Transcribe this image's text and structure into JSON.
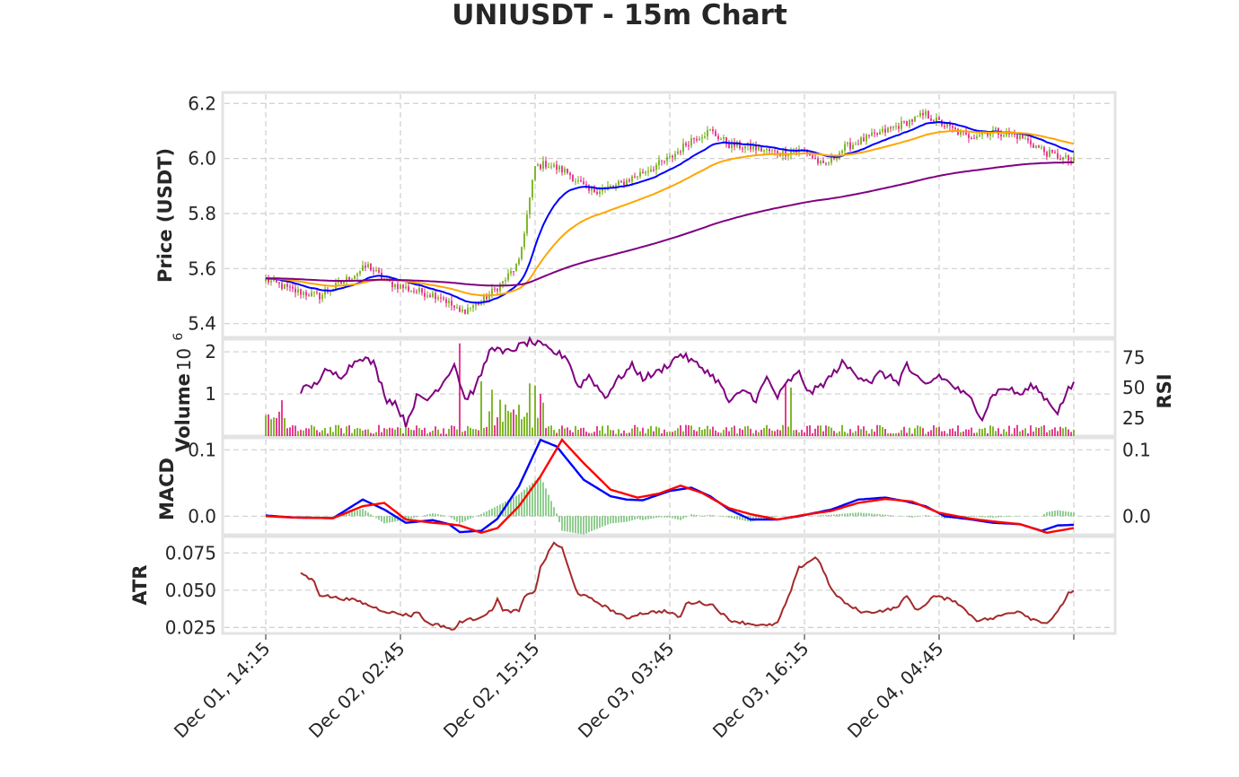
{
  "chart_data": [
    {
      "type": "candlestick",
      "panel": "price",
      "title": "UNIUSDT - 15m Chart",
      "ylabel": "Price (USDT)",
      "ylim": [
        5.35,
        6.24
      ],
      "yticks": [
        "5.4",
        "5.6",
        "5.8",
        "6.0",
        "6.2"
      ],
      "x_start": "Dec 01, 14:15",
      "x_interval_minutes": 15,
      "x_count": 361,
      "xtick_index": [
        0,
        50,
        100,
        150,
        200,
        250,
        300
      ],
      "xtick_labels": [
        "Dec 01, 14:15",
        "Dec 02, 02:45",
        "Dec 02, 15:15",
        "Dec 03, 03:45",
        "Dec 03, 16:15",
        "Dec 04, 04:45",
        ""
      ],
      "close_keypoints": [
        [
          0,
          5.56
        ],
        [
          10,
          5.52
        ],
        [
          20,
          5.5
        ],
        [
          30,
          5.56
        ],
        [
          38,
          5.61
        ],
        [
          45,
          5.55
        ],
        [
          55,
          5.52
        ],
        [
          65,
          5.5
        ],
        [
          72,
          5.44
        ],
        [
          80,
          5.48
        ],
        [
          88,
          5.55
        ],
        [
          94,
          5.62
        ],
        [
          100,
          5.97
        ],
        [
          104,
          5.98
        ],
        [
          112,
          5.95
        ],
        [
          120,
          5.88
        ],
        [
          130,
          5.9
        ],
        [
          140,
          5.95
        ],
        [
          150,
          6.0
        ],
        [
          158,
          6.07
        ],
        [
          165,
          6.1
        ],
        [
          172,
          6.05
        ],
        [
          180,
          6.04
        ],
        [
          190,
          6.02
        ],
        [
          200,
          6.03
        ],
        [
          207,
          5.97
        ],
        [
          215,
          6.04
        ],
        [
          225,
          6.08
        ],
        [
          235,
          6.12
        ],
        [
          245,
          6.16
        ],
        [
          252,
          6.12
        ],
        [
          260,
          6.08
        ],
        [
          270,
          6.1
        ],
        [
          280,
          6.08
        ],
        [
          290,
          6.02
        ],
        [
          296,
          6.0
        ],
        [
          300,
          5.99
        ]
      ],
      "series": [
        {
          "name": "",
          "kind": "ema",
          "period": 20,
          "color": "#0000ff"
        },
        {
          "name": "",
          "kind": "ema",
          "period": 50,
          "color": "#ffa500"
        },
        {
          "name": "",
          "kind": "ema",
          "period": 200,
          "color": "#800080"
        }
      ],
      "colors": {
        "up": "#66aa00",
        "down": "#e0157a"
      }
    },
    {
      "type": "bar",
      "panel": "volume",
      "ylabel": "Volume",
      "yticks": [
        "1",
        "2"
      ],
      "multiplier_base": "10",
      "multiplier_exp": "6",
      "ylim": [
        0,
        2.3
      ],
      "spikes": [
        [
          72,
          2.2
        ],
        [
          80,
          1.3
        ],
        [
          84,
          1.1
        ],
        [
          98,
          1.25
        ],
        [
          100,
          1.2
        ],
        [
          102,
          1.0
        ],
        [
          6,
          0.85
        ],
        [
          193,
          1.25
        ],
        [
          195,
          1.15
        ]
      ],
      "right_axis": {
        "type": "line",
        "ylabel": "RSI",
        "yticks": [
          "25",
          "50",
          "75"
        ],
        "ylim": [
          10,
          90
        ],
        "color": "#800080",
        "keypoints": [
          [
            13,
            48
          ],
          [
            18,
            52
          ],
          [
            22,
            63
          ],
          [
            28,
            60
          ],
          [
            35,
            76
          ],
          [
            40,
            70
          ],
          [
            45,
            40
          ],
          [
            48,
            38
          ],
          [
            52,
            20
          ],
          [
            56,
            42
          ],
          [
            60,
            40
          ],
          [
            66,
            55
          ],
          [
            70,
            70
          ],
          [
            74,
            40
          ],
          [
            78,
            50
          ],
          [
            84,
            85
          ],
          [
            88,
            78
          ],
          [
            92,
            82
          ],
          [
            98,
            88
          ],
          [
            102,
            85
          ],
          [
            106,
            80
          ],
          [
            112,
            75
          ],
          [
            116,
            50
          ],
          [
            120,
            60
          ],
          [
            126,
            42
          ],
          [
            130,
            55
          ],
          [
            136,
            68
          ],
          [
            140,
            58
          ],
          [
            145,
            62
          ],
          [
            150,
            70
          ],
          [
            154,
            78
          ],
          [
            158,
            72
          ],
          [
            163,
            65
          ],
          [
            168,
            55
          ],
          [
            172,
            38
          ],
          [
            178,
            48
          ],
          [
            182,
            40
          ],
          [
            186,
            58
          ],
          [
            190,
            42
          ],
          [
            194,
            55
          ],
          [
            198,
            62
          ],
          [
            202,
            45
          ],
          [
            208,
            55
          ],
          [
            214,
            70
          ],
          [
            220,
            60
          ],
          [
            225,
            55
          ],
          [
            228,
            62
          ],
          [
            235,
            55
          ],
          [
            238,
            70
          ],
          [
            240,
            60
          ],
          [
            245,
            52
          ],
          [
            250,
            60
          ],
          [
            256,
            50
          ],
          [
            262,
            40
          ],
          [
            266,
            25
          ],
          [
            270,
            45
          ],
          [
            275,
            50
          ],
          [
            280,
            44
          ],
          [
            285,
            52
          ],
          [
            290,
            40
          ],
          [
            294,
            30
          ],
          [
            298,
            48
          ],
          [
            300,
            52
          ]
        ]
      }
    },
    {
      "type": "line",
      "panel": "macd",
      "ylabel": "MACD",
      "yticks": [
        "0.0",
        "0.1"
      ],
      "ylim": [
        -0.028,
        0.118
      ],
      "right_axis": {
        "yticks": [
          "0.0",
          "0.1"
        ]
      },
      "series": [
        {
          "name": "",
          "color": "#0000ff",
          "keypoints": [
            [
              0,
              0.001
            ],
            [
              10,
              -0.002
            ],
            [
              25,
              -0.003
            ],
            [
              36,
              0.025
            ],
            [
              44,
              0.01
            ],
            [
              52,
              -0.01
            ],
            [
              62,
              -0.006
            ],
            [
              68,
              -0.012
            ],
            [
              72,
              -0.024
            ],
            [
              80,
              -0.022
            ],
            [
              86,
              -0.004
            ],
            [
              94,
              0.045
            ],
            [
              102,
              0.115
            ],
            [
              108,
              0.105
            ],
            [
              118,
              0.055
            ],
            [
              128,
              0.03
            ],
            [
              134,
              0.025
            ],
            [
              140,
              0.024
            ],
            [
              150,
              0.038
            ],
            [
              158,
              0.043
            ],
            [
              165,
              0.03
            ],
            [
              172,
              0.01
            ],
            [
              180,
              -0.005
            ],
            [
              190,
              -0.005
            ],
            [
              198,
              0.0
            ],
            [
              210,
              0.01
            ],
            [
              220,
              0.025
            ],
            [
              230,
              0.028
            ],
            [
              238,
              0.022
            ],
            [
              245,
              0.015
            ],
            [
              252,
              0.0
            ],
            [
              262,
              -0.005
            ],
            [
              270,
              -0.01
            ],
            [
              280,
              -0.012
            ],
            [
              288,
              -0.022
            ],
            [
              294,
              -0.014
            ],
            [
              300,
              -0.013
            ]
          ]
        },
        {
          "name": "",
          "color": "#ff0000",
          "keypoints": [
            [
              0,
              0.0
            ],
            [
              10,
              -0.002
            ],
            [
              25,
              -0.003
            ],
            [
              36,
              0.015
            ],
            [
              44,
              0.02
            ],
            [
              52,
              -0.005
            ],
            [
              62,
              -0.01
            ],
            [
              68,
              -0.012
            ],
            [
              72,
              -0.014
            ],
            [
              80,
              -0.025
            ],
            [
              86,
              -0.018
            ],
            [
              94,
              0.015
            ],
            [
              102,
              0.06
            ],
            [
              110,
              0.115
            ],
            [
              118,
              0.08
            ],
            [
              128,
              0.04
            ],
            [
              138,
              0.028
            ],
            [
              146,
              0.034
            ],
            [
              154,
              0.046
            ],
            [
              162,
              0.035
            ],
            [
              172,
              0.012
            ],
            [
              180,
              0.003
            ],
            [
              190,
              -0.005
            ],
            [
              200,
              0.002
            ],
            [
              210,
              0.008
            ],
            [
              220,
              0.02
            ],
            [
              230,
              0.026
            ],
            [
              240,
              0.022
            ],
            [
              250,
              0.005
            ],
            [
              262,
              -0.004
            ],
            [
              270,
              -0.008
            ],
            [
              280,
              -0.012
            ],
            [
              290,
              -0.025
            ],
            [
              300,
              -0.018
            ]
          ]
        }
      ],
      "histogram_color": "#7cc47c"
    },
    {
      "type": "line",
      "panel": "atr",
      "ylabel": "ATR",
      "yticks": [
        "0.025",
        "0.050",
        "0.075"
      ],
      "ylim": [
        0.021,
        0.086
      ],
      "color": "#a52a2a",
      "keypoints": [
        [
          13,
          0.062
        ],
        [
          16,
          0.058
        ],
        [
          18,
          0.056
        ],
        [
          20,
          0.047
        ],
        [
          26,
          0.045
        ],
        [
          34,
          0.043
        ],
        [
          38,
          0.04
        ],
        [
          44,
          0.036
        ],
        [
          50,
          0.034
        ],
        [
          54,
          0.033
        ],
        [
          56,
          0.036
        ],
        [
          60,
          0.028
        ],
        [
          66,
          0.026
        ],
        [
          70,
          0.023
        ],
        [
          72,
          0.029
        ],
        [
          78,
          0.031
        ],
        [
          84,
          0.036
        ],
        [
          86,
          0.045
        ],
        [
          88,
          0.036
        ],
        [
          94,
          0.036
        ],
        [
          96,
          0.045
        ],
        [
          100,
          0.05
        ],
        [
          102,
          0.065
        ],
        [
          107,
          0.082
        ],
        [
          110,
          0.078
        ],
        [
          114,
          0.056
        ],
        [
          116,
          0.048
        ],
        [
          122,
          0.043
        ],
        [
          130,
          0.035
        ],
        [
          134,
          0.031
        ],
        [
          138,
          0.034
        ],
        [
          142,
          0.035
        ],
        [
          148,
          0.036
        ],
        [
          154,
          0.032
        ],
        [
          156,
          0.041
        ],
        [
          160,
          0.042
        ],
        [
          166,
          0.04
        ],
        [
          172,
          0.03
        ],
        [
          178,
          0.028
        ],
        [
          186,
          0.026
        ],
        [
          190,
          0.028
        ],
        [
          194,
          0.045
        ],
        [
          198,
          0.065
        ],
        [
          204,
          0.072
        ],
        [
          206,
          0.068
        ],
        [
          210,
          0.05
        ],
        [
          216,
          0.04
        ],
        [
          222,
          0.035
        ],
        [
          228,
          0.036
        ],
        [
          234,
          0.038
        ],
        [
          238,
          0.046
        ],
        [
          242,
          0.036
        ],
        [
          248,
          0.046
        ],
        [
          256,
          0.043
        ],
        [
          260,
          0.036
        ],
        [
          264,
          0.03
        ],
        [
          270,
          0.031
        ],
        [
          276,
          0.035
        ],
        [
          280,
          0.036
        ],
        [
          284,
          0.031
        ],
        [
          290,
          0.028
        ],
        [
          294,
          0.035
        ],
        [
          298,
          0.048
        ],
        [
          300,
          0.05
        ]
      ]
    }
  ]
}
